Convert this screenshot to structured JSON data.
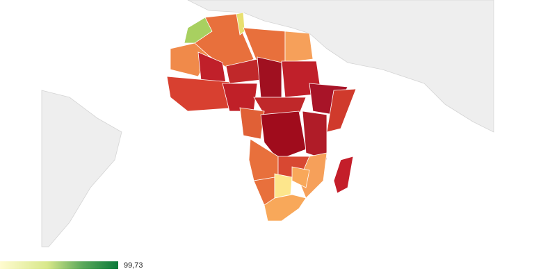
{
  "legend": {
    "max_label": "99,73"
  }
}
